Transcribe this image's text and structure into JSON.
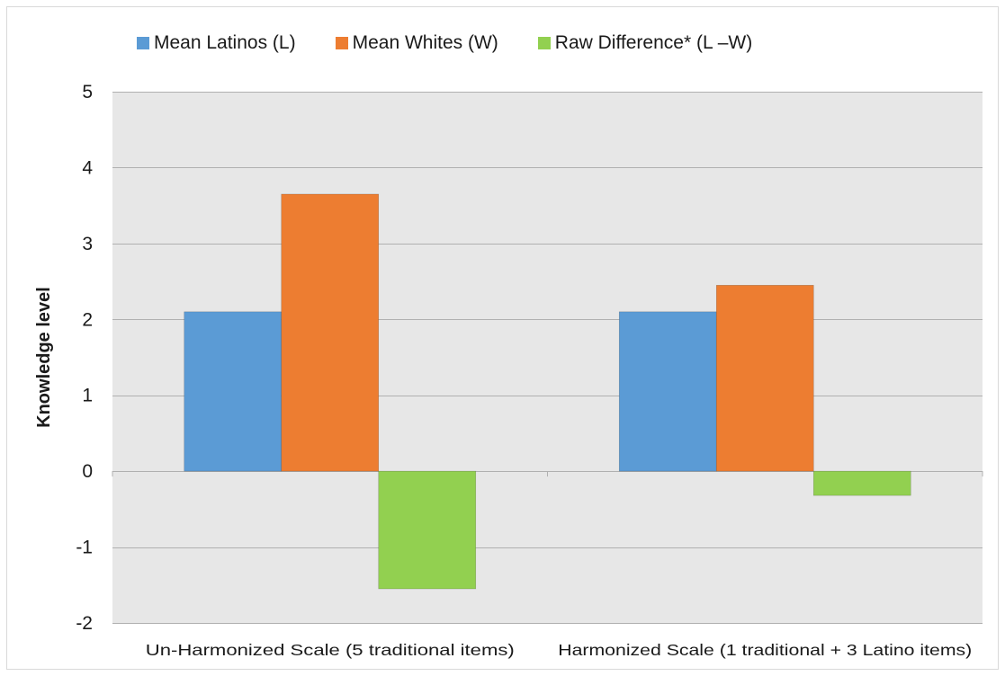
{
  "chart_data": {
    "type": "bar",
    "title": "",
    "xlabel": "",
    "ylabel": "Knowledge level",
    "ylim": [
      -2,
      5
    ],
    "yticks": [
      5,
      4,
      3,
      2,
      1,
      0,
      -1,
      -2
    ],
    "grid": true,
    "legend_position": "top",
    "categories": [
      "Un-Harmonized Scale (5 traditional items)",
      "Harmonized Scale (1 traditional + 3 Latino items)"
    ],
    "series": [
      {
        "name": "Mean Latinos (L)",
        "color": "#5b9bd5",
        "values": [
          2.1,
          2.1
        ]
      },
      {
        "name": "Mean Whites (W)",
        "color": "#ed7d31",
        "values": [
          3.65,
          2.45
        ]
      },
      {
        "name": "Raw Difference* (L –W)",
        "color": "#92d050",
        "values": [
          -1.55,
          -0.32
        ]
      }
    ],
    "plot_background": "#e7e7e7",
    "grid_color": "#b0b0b0"
  }
}
